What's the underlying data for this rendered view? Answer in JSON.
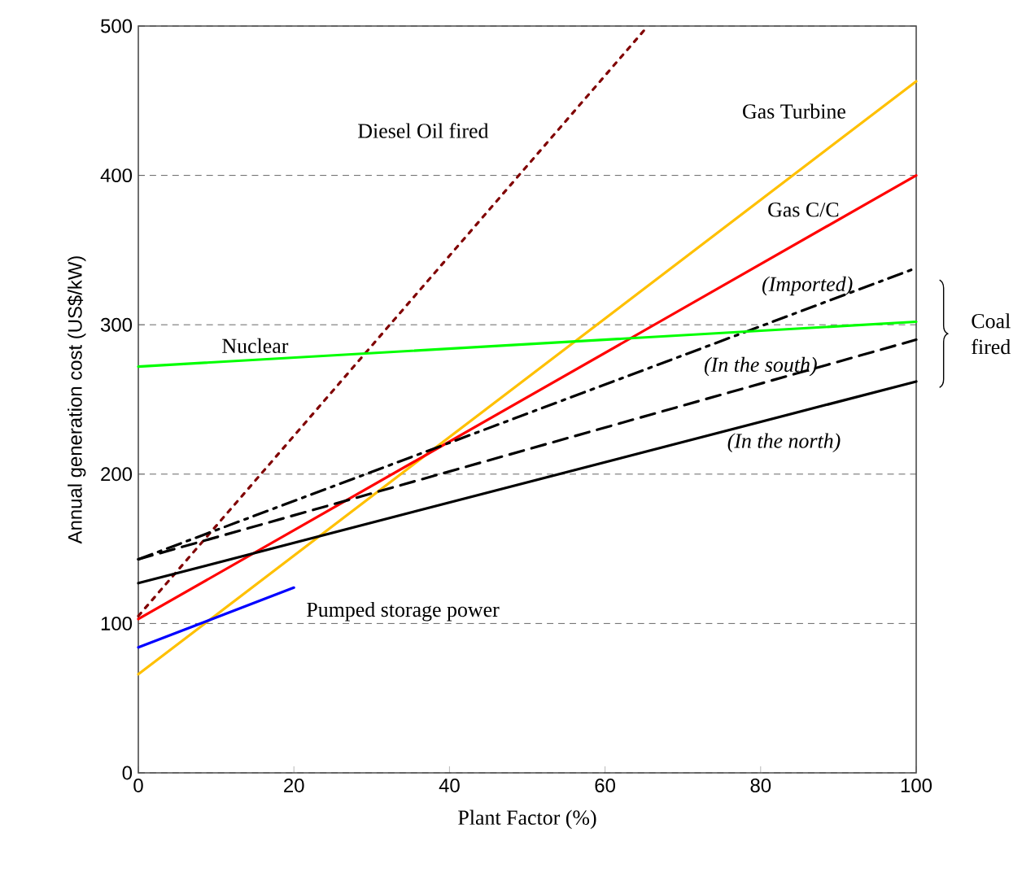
{
  "chart_data": {
    "type": "line",
    "xlabel": "Plant Factor (%)",
    "ylabel": "Annual generation cost (US$/kW)",
    "xlim": [
      0,
      100
    ],
    "ylim": [
      0,
      500
    ],
    "xticks": [
      0,
      20,
      40,
      60,
      80,
      100
    ],
    "yticks": [
      0,
      100,
      200,
      300,
      400,
      500
    ],
    "grid": "y",
    "legend": false,
    "marker": "none",
    "series": [
      {
        "name": "Diesel Oil fired",
        "color": "#800000",
        "line_style": "dotted",
        "x": [
          0,
          65.5
        ],
        "values": [
          105,
          500
        ]
      },
      {
        "name": "Gas Turbine",
        "color": "#ffc000",
        "line_style": "solid",
        "x": [
          0,
          100
        ],
        "values": [
          66,
          463
        ]
      },
      {
        "name": "Gas C/C",
        "color": "#ff0000",
        "line_style": "solid",
        "x": [
          0,
          100
        ],
        "values": [
          103,
          400
        ]
      },
      {
        "name": "*(Imported)*",
        "color": "#000000",
        "line_style": "dashdot",
        "x": [
          0,
          100
        ],
        "values": [
          143,
          338
        ]
      },
      {
        "name": "*(In the south)*",
        "color": "#000000",
        "line_style": "dashed",
        "x": [
          0,
          100
        ],
        "values": [
          143,
          290
        ]
      },
      {
        "name": "*(In the north)*",
        "color": "#000000",
        "line_style": "solid",
        "x": [
          0,
          100
        ],
        "values": [
          127,
          262
        ]
      },
      {
        "name": "Nuclear",
        "color": "#00ff00",
        "line_style": "solid",
        "x": [
          0,
          100
        ],
        "values": [
          272,
          302
        ]
      },
      {
        "name": "Pumped storage power",
        "color": "#0000ff",
        "line_style": "solid",
        "x": [
          0,
          20
        ],
        "values": [
          84,
          124
        ]
      }
    ],
    "annotations": [
      "Coal fired"
    ]
  }
}
